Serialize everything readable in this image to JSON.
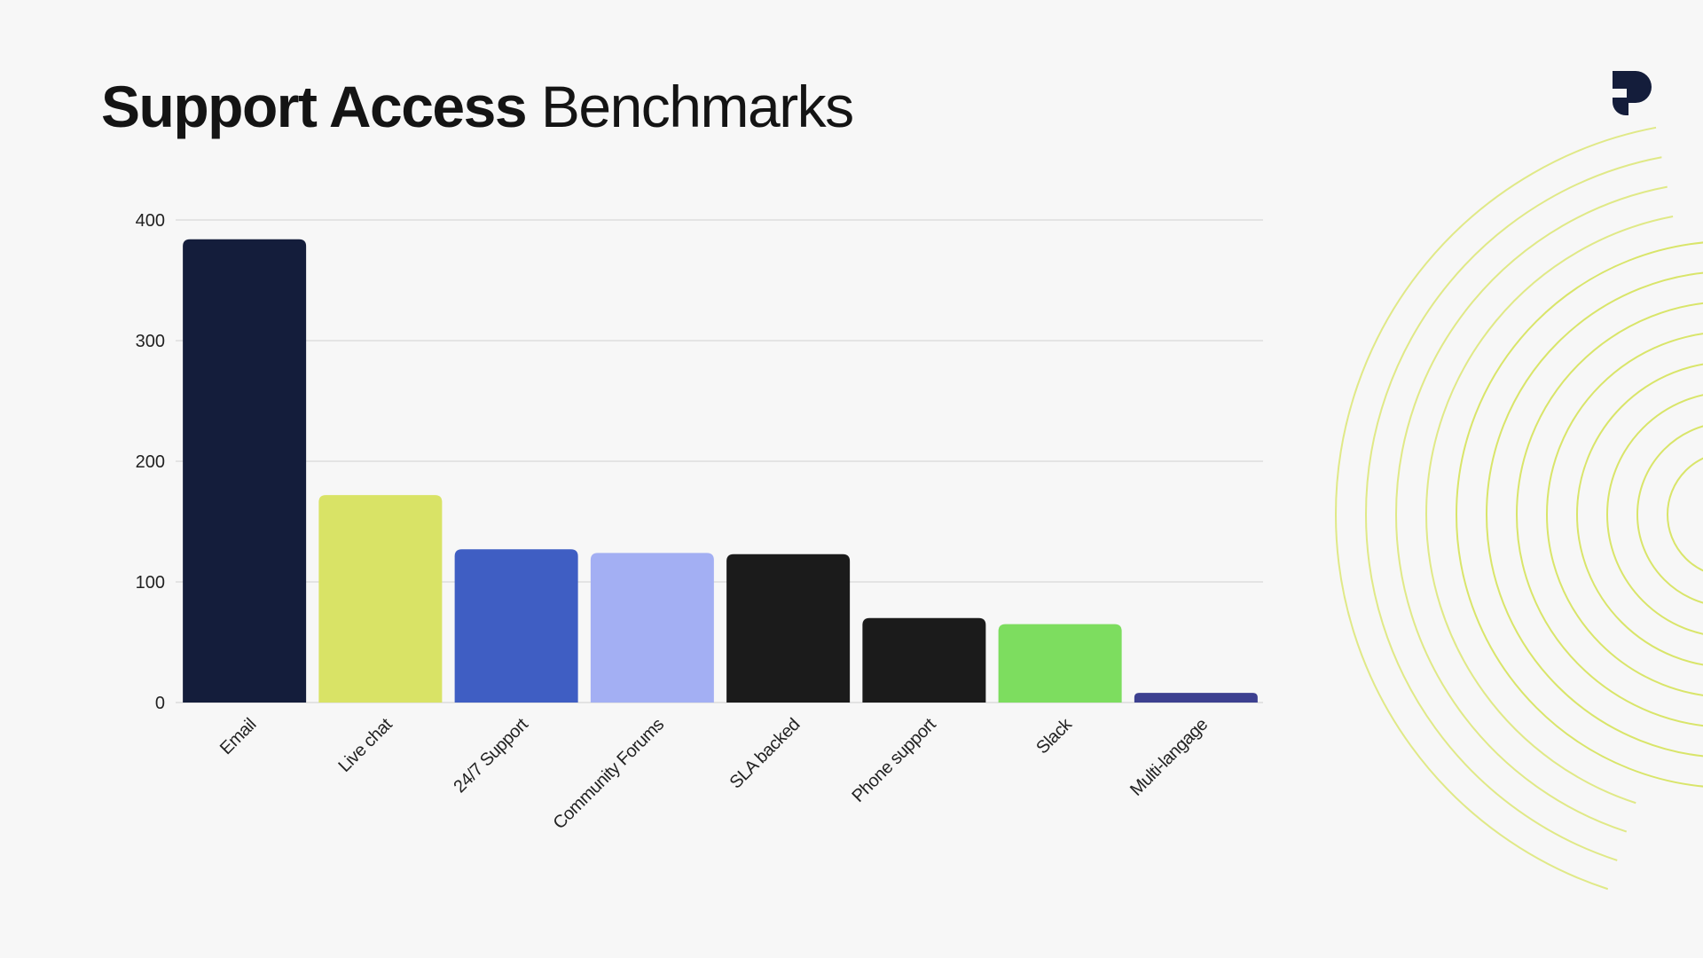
{
  "header": {
    "title_bold": "Support Access",
    "title_light": "Benchmarks"
  },
  "logo": {
    "icon": "p-logo-icon",
    "color": "#141d3b"
  },
  "decoration": {
    "icon": "concentric-rings",
    "color": "#d9e56a"
  },
  "chart_data": {
    "type": "bar",
    "title": "",
    "xlabel": "",
    "ylabel": "",
    "ylim": [
      0,
      400
    ],
    "yticks": [
      0,
      100,
      200,
      300,
      400
    ],
    "grid": true,
    "legend": "none",
    "categories": [
      "Email",
      "Live chat",
      "24/7 Support",
      "Community Forums",
      "SLA backed",
      "Phone support",
      "Slack",
      "Multi-langage"
    ],
    "values": [
      384,
      172,
      127,
      124,
      123,
      70,
      65,
      8
    ],
    "colors": [
      "#141d3b",
      "#d9e366",
      "#3f5ec3",
      "#a3aff3",
      "#1b1b1b",
      "#1b1b1b",
      "#7ddd5f",
      "#3d4090"
    ]
  }
}
